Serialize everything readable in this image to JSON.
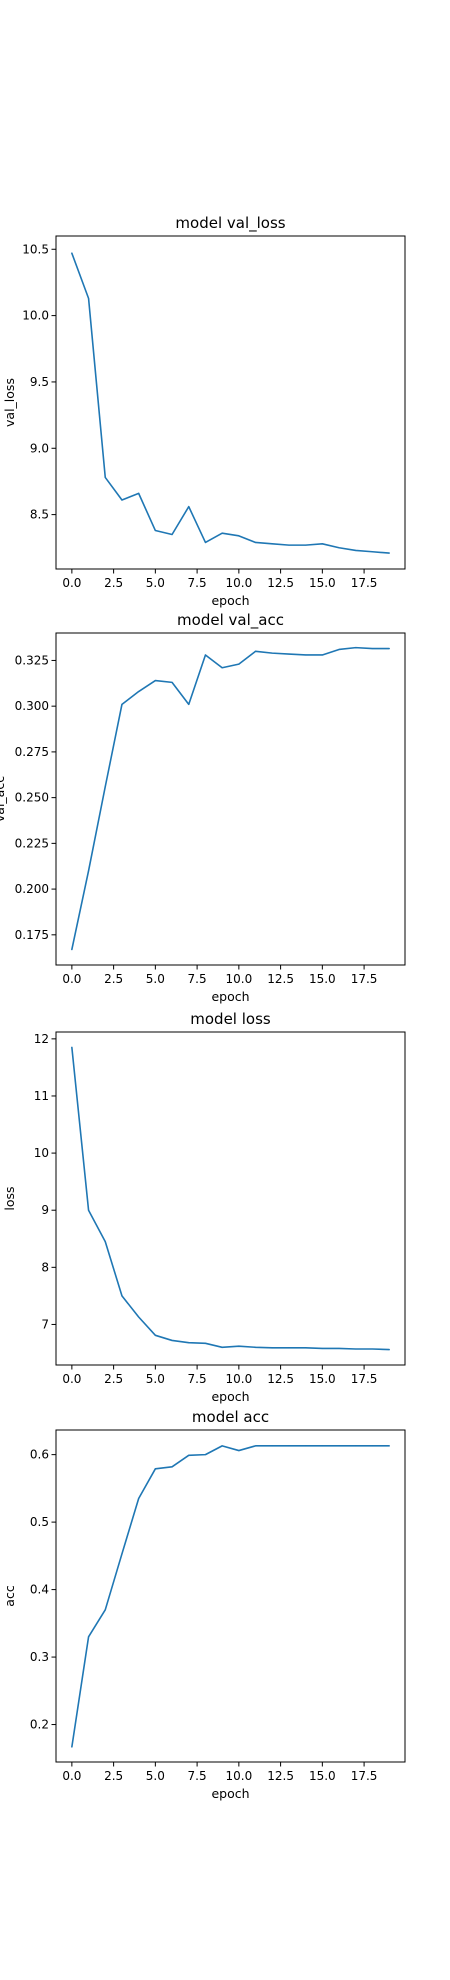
{
  "chart_data": [
    {
      "type": "line",
      "title": "model val_loss",
      "xlabel": "epoch",
      "ylabel": "val_loss",
      "xlim": [
        -0.95,
        19.95
      ],
      "ylim": [
        8.09,
        10.6
      ],
      "xticks": [
        0,
        2.5,
        5,
        7.5,
        10,
        12.5,
        15,
        17.5
      ],
      "xtick_labels": [
        "0.0",
        "2.5",
        "5.0",
        "7.5",
        "10.0",
        "12.5",
        "15.0",
        "17.5"
      ],
      "yticks": [
        8.5,
        9.0,
        9.5,
        10.0,
        10.5
      ],
      "ytick_labels": [
        "8.5",
        "9.0",
        "9.5",
        "10.0",
        "10.5"
      ],
      "grid": false,
      "color": "#1f77b4",
      "series": [
        {
          "x": [
            0,
            1,
            2,
            3,
            4,
            5,
            6,
            7,
            8,
            9,
            10,
            11,
            12,
            13,
            14,
            15,
            16,
            17,
            18,
            19
          ],
          "values": [
            10.47,
            10.13,
            8.78,
            8.61,
            8.66,
            8.38,
            8.35,
            8.56,
            8.29,
            8.36,
            8.34,
            8.29,
            8.28,
            8.27,
            8.27,
            8.28,
            8.25,
            8.23,
            8.22,
            8.21
          ]
        }
      ]
    },
    {
      "type": "line",
      "title": "model val_acc",
      "xlabel": "epoch",
      "ylabel": "val_acc",
      "xlim": [
        -0.95,
        19.95
      ],
      "ylim": [
        0.1585,
        0.34
      ],
      "xticks": [
        0,
        2.5,
        5,
        7.5,
        10,
        12.5,
        15,
        17.5
      ],
      "xtick_labels": [
        "0.0",
        "2.5",
        "5.0",
        "7.5",
        "10.0",
        "12.5",
        "15.0",
        "17.5"
      ],
      "yticks": [
        0.175,
        0.2,
        0.225,
        0.25,
        0.275,
        0.3,
        0.325
      ],
      "ytick_labels": [
        "0.175",
        "0.200",
        "0.225",
        "0.250",
        "0.275",
        "0.300",
        "0.325"
      ],
      "grid": false,
      "color": "#1f77b4",
      "series": [
        {
          "x": [
            0,
            1,
            2,
            3,
            4,
            5,
            6,
            7,
            8,
            9,
            10,
            11,
            12,
            13,
            14,
            15,
            16,
            17,
            18,
            19
          ],
          "values": [
            0.167,
            0.21,
            0.256,
            0.301,
            0.308,
            0.314,
            0.313,
            0.301,
            0.328,
            0.321,
            0.323,
            0.33,
            0.329,
            0.3285,
            0.328,
            0.328,
            0.331,
            0.332,
            0.3315,
            0.3315
          ]
        }
      ]
    },
    {
      "type": "line",
      "title": "model loss",
      "xlabel": "epoch",
      "ylabel": "loss",
      "xlim": [
        -0.95,
        19.95
      ],
      "ylim": [
        6.29,
        12.12
      ],
      "xticks": [
        0,
        2.5,
        5,
        7.5,
        10,
        12.5,
        15,
        17.5
      ],
      "xtick_labels": [
        "0.0",
        "2.5",
        "5.0",
        "7.5",
        "10.0",
        "12.5",
        "15.0",
        "17.5"
      ],
      "yticks": [
        7,
        8,
        9,
        10,
        11,
        12
      ],
      "ytick_labels": [
        "7",
        "8",
        "9",
        "10",
        "11",
        "12"
      ],
      "grid": false,
      "color": "#1f77b4",
      "series": [
        {
          "x": [
            0,
            1,
            2,
            3,
            4,
            5,
            6,
            7,
            8,
            9,
            10,
            11,
            12,
            13,
            14,
            15,
            16,
            17,
            18,
            19
          ],
          "values": [
            11.85,
            9.0,
            8.45,
            7.5,
            7.13,
            6.81,
            6.72,
            6.68,
            6.67,
            6.6,
            6.62,
            6.6,
            6.59,
            6.59,
            6.59,
            6.58,
            6.58,
            6.57,
            6.57,
            6.56
          ]
        }
      ]
    },
    {
      "type": "line",
      "title": "model acc",
      "xlabel": "epoch",
      "ylabel": "acc",
      "xlim": [
        -0.95,
        19.95
      ],
      "ylim": [
        0.1445,
        0.6365
      ],
      "xticks": [
        0,
        2.5,
        5,
        7.5,
        10,
        12.5,
        15,
        17.5
      ],
      "xtick_labels": [
        "0.0",
        "2.5",
        "5.0",
        "7.5",
        "10.0",
        "12.5",
        "15.0",
        "17.5"
      ],
      "yticks": [
        0.2,
        0.3,
        0.4,
        0.5,
        0.6
      ],
      "ytick_labels": [
        "0.2",
        "0.3",
        "0.4",
        "0.5",
        "0.6"
      ],
      "grid": false,
      "color": "#1f77b4",
      "series": [
        {
          "x": [
            0,
            1,
            2,
            3,
            4,
            5,
            6,
            7,
            8,
            9,
            10,
            11,
            12,
            13,
            14,
            15,
            16,
            17,
            18,
            19
          ],
          "values": [
            0.167,
            0.33,
            0.37,
            0.453,
            0.535,
            0.579,
            0.582,
            0.599,
            0.6,
            0.613,
            0.606,
            0.613,
            0.613,
            0.613,
            0.613,
            0.613,
            0.613,
            0.613,
            0.613,
            0.613
          ]
        }
      ]
    }
  ]
}
